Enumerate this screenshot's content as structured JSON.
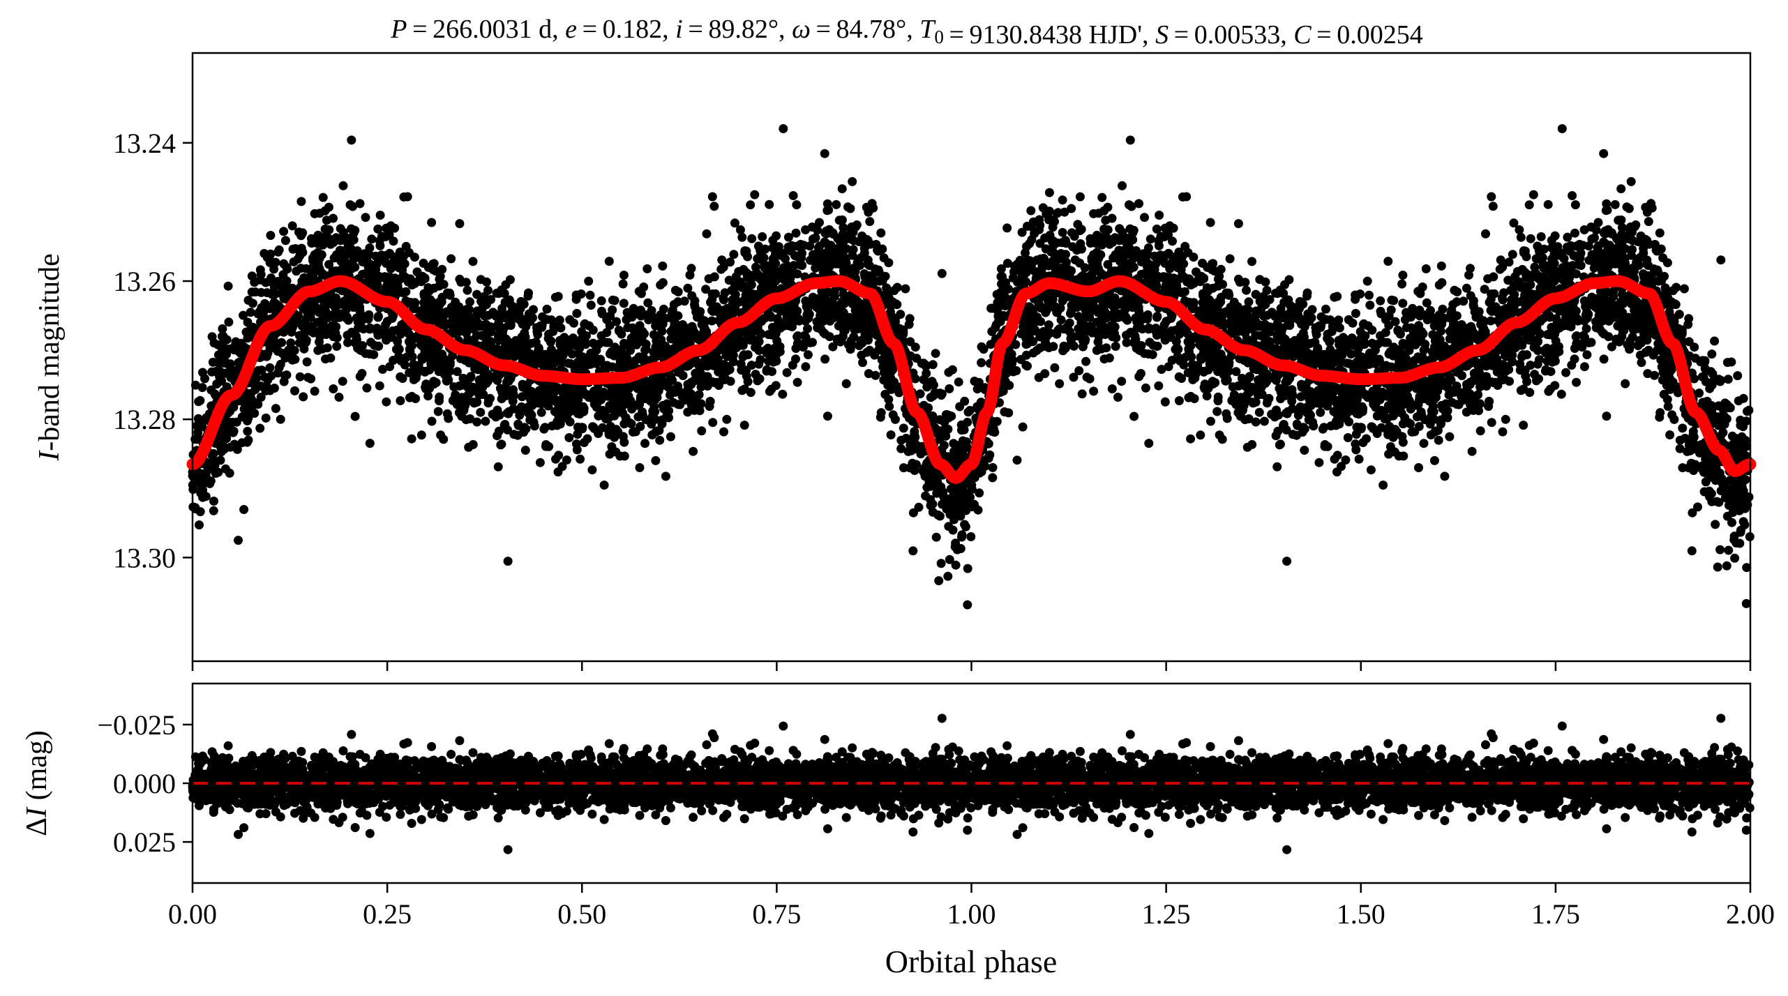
{
  "chart_data": [
    {
      "type": "scatter",
      "panel": "light-curve",
      "title": {
        "parts": [
          {
            "t": "P",
            "i": true
          },
          {
            "t": " = 266.0031 d, "
          },
          {
            "t": "e",
            "i": true
          },
          {
            "t": " = 0.182, "
          },
          {
            "t": "i",
            "i": true
          },
          {
            "t": " = 89.82°, "
          },
          {
            "t": "ω",
            "i": true
          },
          {
            "t": " = 84.78°, "
          },
          {
            "t": "T",
            "i": true
          },
          {
            "t": "0",
            "sub": true
          },
          {
            "t": " = 9130.8438 HJD', "
          },
          {
            "t": "S",
            "i": true
          },
          {
            "t": " = 0.00533, "
          },
          {
            "t": "C",
            "i": true
          },
          {
            "t": " = 0.00254"
          }
        ]
      },
      "ylabel_italic": "I",
      "ylabel_rest": "-band magnitude",
      "ylim": [
        13.315,
        13.227
      ],
      "xlim": [
        0.0,
        2.0
      ],
      "y_inverted": true,
      "yticks": [
        13.24,
        13.26,
        13.28,
        13.3
      ],
      "ytick_labels": [
        "13.24",
        "13.26",
        "13.28",
        "13.30"
      ],
      "series": [
        {
          "kind": "points",
          "color": "#000000",
          "point_count_per_phase": 3400,
          "noise_sigma_mag": 0.0055
        },
        {
          "kind": "model-curve",
          "color": "#ff0000",
          "x": [
            0.0,
            0.05,
            0.1,
            0.15,
            0.19,
            0.25,
            0.3,
            0.35,
            0.4,
            0.45,
            0.5,
            0.55,
            0.6,
            0.65,
            0.7,
            0.75,
            0.8,
            0.83,
            0.87,
            0.9,
            0.93,
            0.96,
            0.98,
            1.0,
            1.02,
            1.04,
            1.07,
            1.1,
            1.15,
            1.19,
            1.25,
            1.3,
            1.35,
            1.4,
            1.45,
            1.5,
            1.55,
            1.6,
            1.65,
            1.7,
            1.75,
            1.8,
            1.83,
            1.87,
            1.9,
            1.93,
            1.96,
            1.98,
            2.0
          ],
          "y": [
            13.2865,
            13.2765,
            13.2665,
            13.2615,
            13.26,
            13.263,
            13.267,
            13.27,
            13.2722,
            13.2737,
            13.2742,
            13.274,
            13.2725,
            13.27,
            13.266,
            13.2625,
            13.2603,
            13.26,
            13.2618,
            13.269,
            13.279,
            13.2865,
            13.2885,
            13.2865,
            13.279,
            13.269,
            13.2618,
            13.2603,
            13.2615,
            13.26,
            13.263,
            13.267,
            13.27,
            13.2722,
            13.2737,
            13.2742,
            13.274,
            13.2725,
            13.27,
            13.266,
            13.2625,
            13.2603,
            13.26,
            13.2618,
            13.269,
            13.279,
            13.2845,
            13.2875,
            13.2865
          ]
        }
      ]
    },
    {
      "type": "scatter",
      "panel": "residuals",
      "ylabel_prefix": "Δ",
      "ylabel_italic": "I",
      "ylabel_rest": " (mag)",
      "ylim": [
        0.0425,
        -0.0425
      ],
      "y_inverted": true,
      "yticks": [
        -0.025,
        0.0,
        0.025
      ],
      "ytick_labels": [
        "−0.025",
        "0.000",
        "0.025"
      ],
      "xlabel": "Orbital phase",
      "xlim": [
        0.0,
        2.0
      ],
      "xticks": [
        0.0,
        0.25,
        0.5,
        0.75,
        1.0,
        1.25,
        1.5,
        1.75,
        2.0
      ],
      "xtick_labels": [
        "0.00",
        "0.25",
        "0.50",
        "0.75",
        "1.00",
        "1.25",
        "1.50",
        "1.75",
        "2.00"
      ],
      "zero_line": {
        "y": 0.0,
        "color": "#cc0000",
        "style": "dashed"
      },
      "series": [
        {
          "kind": "points",
          "color": "#000000",
          "noise_sigma_mag": 0.0055
        }
      ]
    }
  ]
}
